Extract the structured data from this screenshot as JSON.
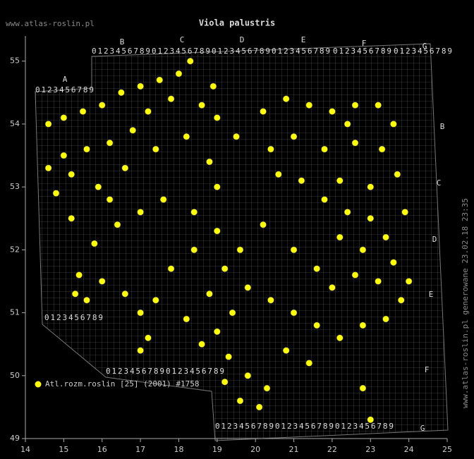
{
  "site": "www.atlas-roslin.pl",
  "generated": "www.atlas-roslin.pl generowane 23.02.18 23:35",
  "map_grid": {
    "letters": [
      "A",
      "B",
      "C",
      "D",
      "E",
      "F",
      "G"
    ],
    "digits": "0123456789"
  },
  "chart_data": {
    "type": "scatter",
    "title": "Viola palustris",
    "xlim": [
      14,
      25
    ],
    "ylim": [
      49,
      55.4
    ],
    "xticks": [
      14,
      15,
      16,
      17,
      18,
      19,
      20,
      21,
      22,
      23,
      24,
      25
    ],
    "yticks": [
      49,
      50,
      51,
      52,
      53,
      54,
      55
    ],
    "series": [
      {
        "name": "Atl.rozm.roslin [25] (2001) #1758",
        "color": "#ffff00",
        "x": [
          14.6,
          15.0,
          15.5,
          16.0,
          16.5,
          17.0,
          17.5,
          18.0,
          18.3,
          17.8,
          17.2,
          16.8,
          16.2,
          15.6,
          15.0,
          14.6,
          15.2,
          15.9,
          16.6,
          17.4,
          18.2,
          18.6,
          19.0,
          19.5,
          20.2,
          20.8,
          21.4,
          22.0,
          22.6,
          23.2,
          23.6,
          23.3,
          22.6,
          21.8,
          21.0,
          20.4,
          20.6,
          21.2,
          22.2,
          23.0,
          23.7,
          22.4,
          23.0,
          23.4,
          22.8,
          22.2,
          21.8,
          23.6,
          23.2,
          22.6,
          22.0,
          21.6,
          23.8,
          23.4,
          22.8,
          22.2,
          21.6,
          21.0,
          20.4,
          19.8,
          19.4,
          19.0,
          19.3,
          19.8,
          20.3,
          19.6,
          19.2,
          20.8,
          21.4,
          18.6,
          18.2,
          18.8,
          19.2,
          19.6,
          20.2,
          19.0,
          18.4,
          17.8,
          17.4,
          17.0,
          16.6,
          16.0,
          15.6,
          15.4,
          15.8,
          16.4,
          17.0,
          17.6,
          18.4,
          19.0,
          18.8,
          16.2,
          15.2,
          14.8,
          17.2,
          17.0,
          22.8,
          23.0,
          20.1,
          21.0,
          22.4,
          18.9,
          24.0,
          23.9,
          15.3
        ],
        "y": [
          54.0,
          54.1,
          54.2,
          54.3,
          54.5,
          54.6,
          54.7,
          54.8,
          55.0,
          54.4,
          54.2,
          53.9,
          53.7,
          53.6,
          53.5,
          53.3,
          53.2,
          53.0,
          53.3,
          53.6,
          53.8,
          54.3,
          54.1,
          53.8,
          54.2,
          54.4,
          54.3,
          54.2,
          54.3,
          54.3,
          54.0,
          53.6,
          53.7,
          53.6,
          53.8,
          53.6,
          53.2,
          53.1,
          53.1,
          53.0,
          53.2,
          52.6,
          52.5,
          52.2,
          52.0,
          52.2,
          52.8,
          51.8,
          51.5,
          51.6,
          51.4,
          51.7,
          51.2,
          50.9,
          50.8,
          50.6,
          50.8,
          51.0,
          51.2,
          51.4,
          51.0,
          50.7,
          50.3,
          50.0,
          49.8,
          49.6,
          49.9,
          50.4,
          50.2,
          50.5,
          50.9,
          51.3,
          51.7,
          52.0,
          52.4,
          52.3,
          52.0,
          51.7,
          51.2,
          51.0,
          51.3,
          51.5,
          51.2,
          51.6,
          52.1,
          52.4,
          52.6,
          52.8,
          52.6,
          53.0,
          53.4,
          52.8,
          52.5,
          52.9,
          50.6,
          50.4,
          49.8,
          49.3,
          49.5,
          52.0,
          54.0,
          54.6,
          51.5,
          52.6,
          51.3
        ]
      }
    ]
  }
}
